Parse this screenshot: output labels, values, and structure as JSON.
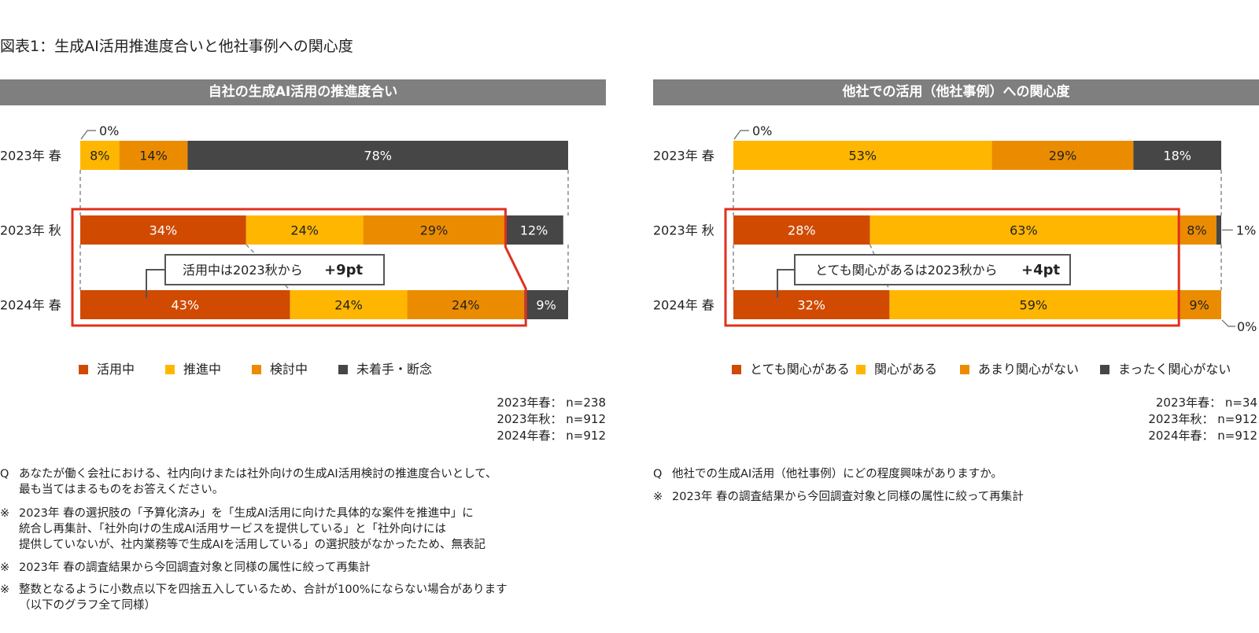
{
  "page_title": "図表1：生成AI活用推進度合いと他社事例への関心度",
  "chart_data": [
    {
      "type": "bar",
      "stacked": true,
      "orientation": "horizontal",
      "title": "自社の生成AI活用の推進度合い",
      "categories": [
        "2023年 春",
        "2023年 秋",
        "2024年 春"
      ],
      "series": [
        {
          "name": "活用中",
          "color": "#d04a02",
          "values": [
            0,
            34,
            43
          ]
        },
        {
          "name": "推進中",
          "color": "#ffb600",
          "values": [
            8,
            24,
            24
          ]
        },
        {
          "name": "検討中",
          "color": "#eb8c00",
          "values": [
            14,
            29,
            24
          ]
        },
        {
          "name": "未着手・断念",
          "color": "#464646",
          "values": [
            78,
            12,
            9
          ]
        }
      ],
      "value_labels": [
        [
          "0%",
          "8%",
          "14%",
          "78%"
        ],
        [
          "34%",
          "24%",
          "29%",
          "12%"
        ],
        [
          "43%",
          "24%",
          "24%",
          "9%"
        ]
      ],
      "callout": {
        "text": "活用中は2023秋から",
        "bold": "+9pt"
      },
      "legend_position": "bottom",
      "sample_sizes": [
        "2023年春： n=238",
        "2023年秋： n=912",
        "2024年春： n=912"
      ]
    },
    {
      "type": "bar",
      "stacked": true,
      "orientation": "horizontal",
      "title": "他社での活用（他社事例）への関心度",
      "categories": [
        "2023年 春",
        "2023年 秋",
        "2024年 春"
      ],
      "series": [
        {
          "name": "とても関心がある",
          "color": "#d04a02",
          "values": [
            0,
            28,
            32
          ]
        },
        {
          "name": "関心がある",
          "color": "#ffb600",
          "values": [
            53,
            63,
            59
          ]
        },
        {
          "name": "あまり関心がない",
          "color": "#eb8c00",
          "values": [
            29,
            8,
            9
          ]
        },
        {
          "name": "まったく関心がない",
          "color": "#464646",
          "values": [
            18,
            1,
            0
          ]
        }
      ],
      "value_labels": [
        [
          "0%",
          "53%",
          "29%",
          "18%"
        ],
        [
          "28%",
          "63%",
          "8%",
          "1%"
        ],
        [
          "32%",
          "59%",
          "9%",
          "0%"
        ]
      ],
      "callout": {
        "text": "とても関心があるは2023秋から",
        "bold": "+4pt"
      },
      "legend_position": "bottom",
      "sample_sizes": [
        "2023年春： n=34",
        "2023年秋： n=912",
        "2024年春： n=912"
      ]
    }
  ],
  "notes_left": [
    {
      "mark": "Q",
      "text": "あなたが働く会社における、社内向けまたは社外向けの生成AI活用検討の推進度合いとして、\n最も当てはまるものをお答えください。"
    },
    {
      "mark": "※",
      "text": "2023年 春の選択肢の「予算化済み」を「生成AI活用に向けた具体的な案件を推進中」に\n統合し再集計、「社外向けの生成AI活用サービスを提供している」と「社外向けには\n提供していないが、社内業務等で生成AIを活用している」の選択肢がなかったため、無表記"
    },
    {
      "mark": "※",
      "text": "2023年 春の調査結果から今回調査対象と同様の属性に絞って再集計"
    },
    {
      "mark": "※",
      "text": "整数となるように小数点以下を四捨五入しているため、合計が100%にならない場合があります\n（以下のグラフ全て同様）"
    }
  ],
  "notes_right": [
    {
      "mark": "Q",
      "text": "他社での生成AI活用（他社事例）にどの程度興味がありますか。"
    },
    {
      "mark": "※",
      "text": "2023年 春の調査結果から今回調査対象と同様の属性に絞って再集計"
    }
  ]
}
